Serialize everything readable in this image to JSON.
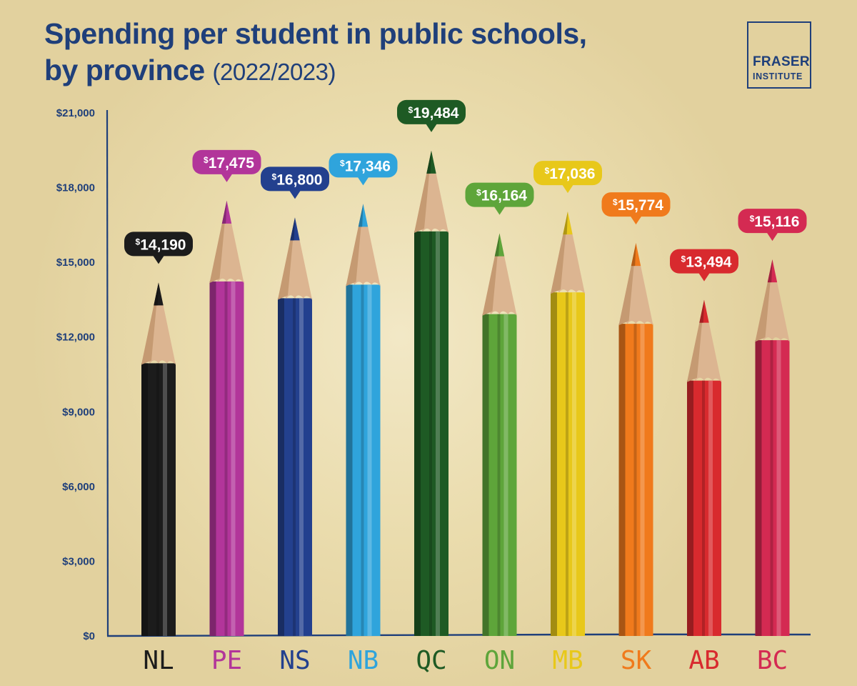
{
  "title": {
    "line1": "Spending per student in public schools,",
    "line2": "by province",
    "period": "(2022/2023)"
  },
  "logo": {
    "line1": "FRASER",
    "line2": "INSTITUTE"
  },
  "value_prefix": "$",
  "colors": {
    "text": "#1f3f7a",
    "background": "#e6d7a8",
    "NL": "#1c1c1c",
    "PE": "#b2359a",
    "NS": "#23408e",
    "NB": "#2fa4dc",
    "QC": "#1e5a24",
    "ON": "#5ea53a",
    "MB": "#e8c81a",
    "SK": "#f07a1c",
    "AB": "#d82a2e",
    "BC": "#d42a52"
  },
  "chart_data": {
    "type": "bar",
    "categories": [
      "NL",
      "PE",
      "NS",
      "NB",
      "QC",
      "ON",
      "MB",
      "SK",
      "AB",
      "BC"
    ],
    "values": [
      14190,
      17475,
      16800,
      17346,
      19484,
      16164,
      17036,
      15774,
      13494,
      15116
    ],
    "value_labels": [
      "14,190",
      "17,475",
      "16,800",
      "17,346",
      "19,484",
      "16,164",
      "17,036",
      "15,774",
      "13,494",
      "15,116"
    ],
    "yticks": [
      "$0",
      "$3,000",
      "$6,000",
      "$9,000",
      "$12,000",
      "$15,000",
      "$18,000",
      "$21,000"
    ],
    "ylim": [
      0,
      21000
    ],
    "title": "Spending per student in public schools, by province (2022/2023)",
    "xlabel": "",
    "ylabel": "",
    "grid": false,
    "legend": "none",
    "bar_style": "colored pencils"
  }
}
